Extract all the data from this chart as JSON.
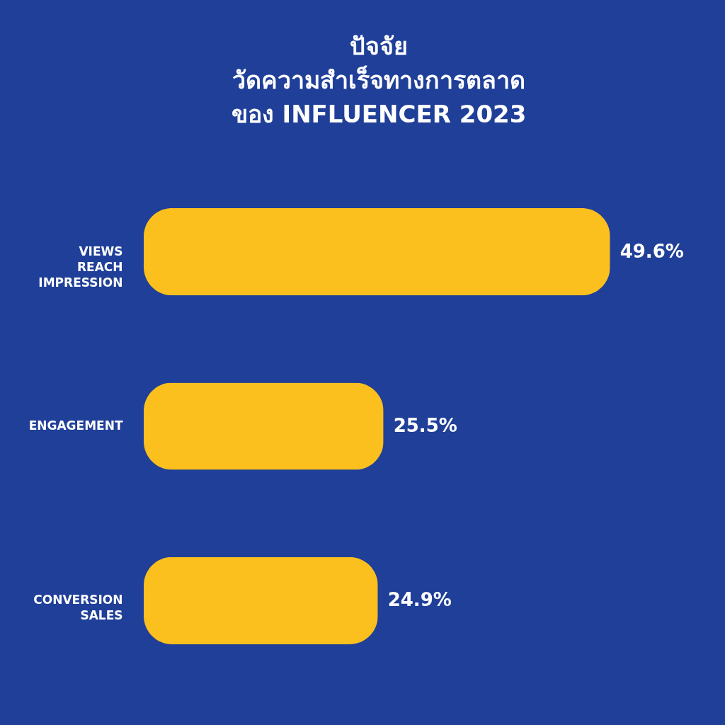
{
  "chart_data": {
    "type": "bar",
    "orientation": "horizontal",
    "title": "ปัจจัย\nวัดความสำเร็จทางการตลาด\nของ INFLUENCER 2023",
    "categories": [
      "VIEWS\nREACH\nIMPRESSION",
      "ENGAGEMENT",
      "CONVERSION\nSALES"
    ],
    "values": [
      49.6,
      25.5,
      24.9
    ],
    "value_labels": [
      "49.6%",
      "25.5%",
      "24.9%"
    ],
    "color": "#fbbf1e",
    "tick_labels": "y"
  }
}
